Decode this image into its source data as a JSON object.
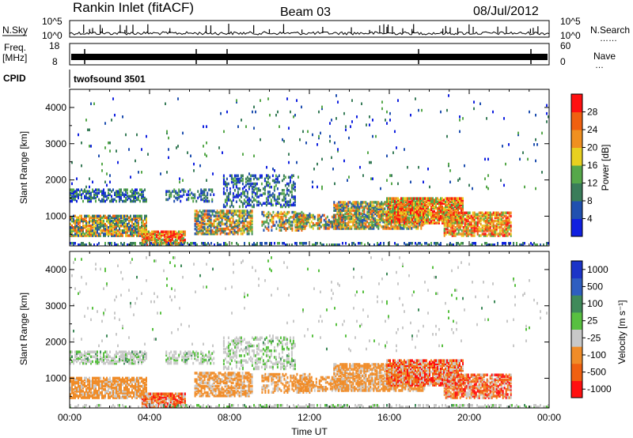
{
  "header": {
    "station": "Rankin Inlet (fitACF)",
    "beam": "Beam 03",
    "date": "08/Jul/2012"
  },
  "colors": {
    "axis": "#000000",
    "background": "#ffffff"
  },
  "chart_data": [
    {
      "type": "line",
      "panel": "noise",
      "left_label": "N.Sky",
      "right_label": "N.Search",
      "left_ticks": [
        "10^5",
        "10^0"
      ],
      "right_ticks": [
        "10^5",
        "10^0"
      ]
    },
    {
      "type": "line",
      "panel": "frequency",
      "left_label_1": "Freq.",
      "left_label_2": "[MHz]",
      "left_ticks": [
        "18",
        "8"
      ],
      "right_label": "Nave",
      "right_ticks": [
        "60",
        "0"
      ]
    },
    {
      "type": "table",
      "panel": "cpid",
      "label": "CPID",
      "value": "twofsound 3501"
    },
    {
      "type": "heatmap",
      "panel": "power",
      "ylabel": "Slant Range [km]",
      "ylim": [
        180,
        4500
      ],
      "y_ticks": [
        1000,
        2000,
        3000,
        4000
      ],
      "colorbar": {
        "label": "Power [dB]",
        "ticks": [
          "4",
          "8",
          "12",
          "16",
          "20",
          "24",
          "28"
        ],
        "colors": [
          "#1020e0",
          "#2050b0",
          "#3a7d5a",
          "#56a84a",
          "#e8d020",
          "#f09020",
          "#f06010",
          "#ff1010"
        ]
      }
    },
    {
      "type": "heatmap",
      "panel": "velocity",
      "ylabel": "Slant Range [km]",
      "ylim": [
        180,
        4500
      ],
      "y_ticks": [
        1000,
        2000,
        3000,
        4000
      ],
      "xlabel": "Time UT",
      "x_ticks": [
        "00:00",
        "04:00",
        "08:00",
        "12:00",
        "16:00",
        "20:00",
        "00:00"
      ],
      "colorbar": {
        "label": "Velocity [m s⁻¹]",
        "ticks": [
          "1000",
          "500",
          "100",
          "25",
          "-25",
          "-100",
          "-500",
          "-1000"
        ],
        "colors": [
          "#1c34c8",
          "#2f5ec0",
          "#3f8a5a",
          "#58c040",
          "#c8c8c8",
          "#f08c28",
          "#f06010",
          "#ff1010"
        ]
      }
    }
  ]
}
